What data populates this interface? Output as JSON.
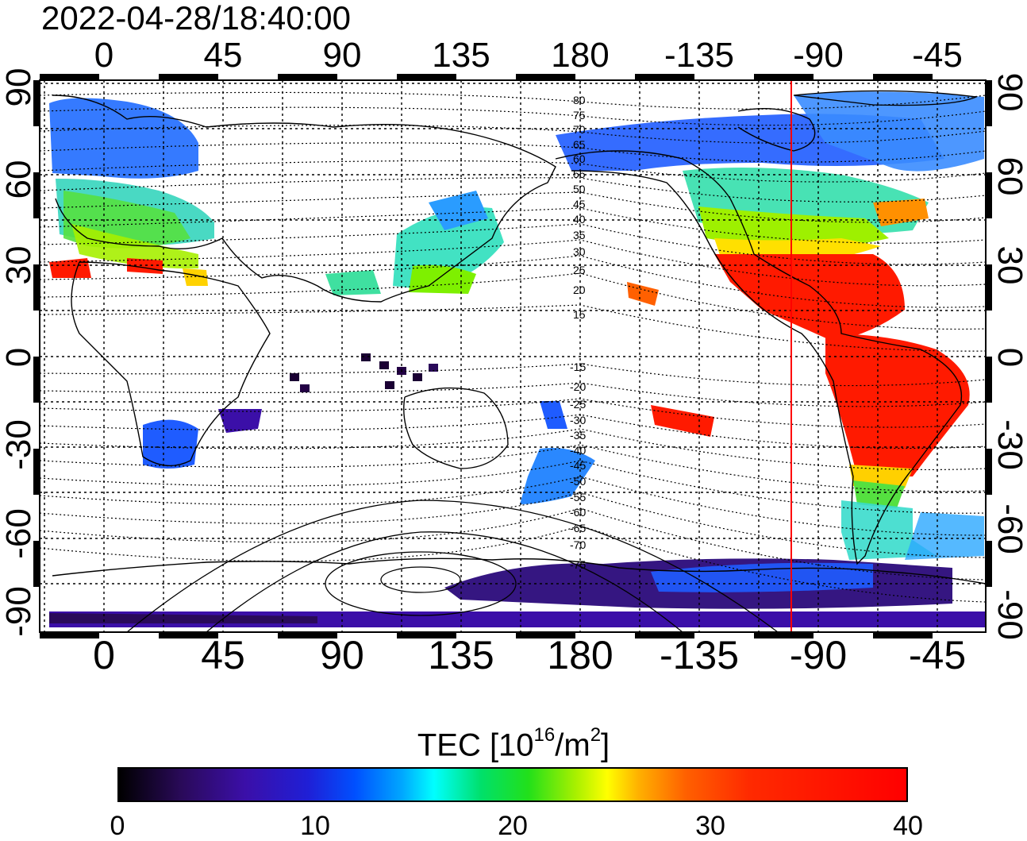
{
  "title": "2022-04-28/18:40:00",
  "map": {
    "lon_ticks": [
      "0",
      "45",
      "90",
      "135",
      "180",
      "-135",
      "-90",
      "-45"
    ],
    "lat_ticks": [
      "90",
      "60",
      "30",
      "0",
      "-30",
      "-60",
      "-90"
    ],
    "contour_labels_north": [
      "80",
      "75",
      "70",
      "65",
      "60",
      "55",
      "50",
      "45",
      "40",
      "35",
      "30",
      "25",
      "20",
      "15"
    ],
    "contour_labels_south": [
      "-15",
      "-20",
      "-25",
      "-30",
      "-35",
      "-40",
      "-45",
      "-50",
      "-55",
      "-60",
      "-65",
      "-70",
      "-75"
    ],
    "terminator_color": "#ff0000"
  },
  "colorbar": {
    "label": "TEC  [10",
    "label_sup1": "16",
    "label_mid": "/m",
    "label_sup2": "2",
    "label_end": "]",
    "ticks": [
      "0",
      "10",
      "20",
      "30",
      "40"
    ],
    "min": 0,
    "max": 40
  }
}
